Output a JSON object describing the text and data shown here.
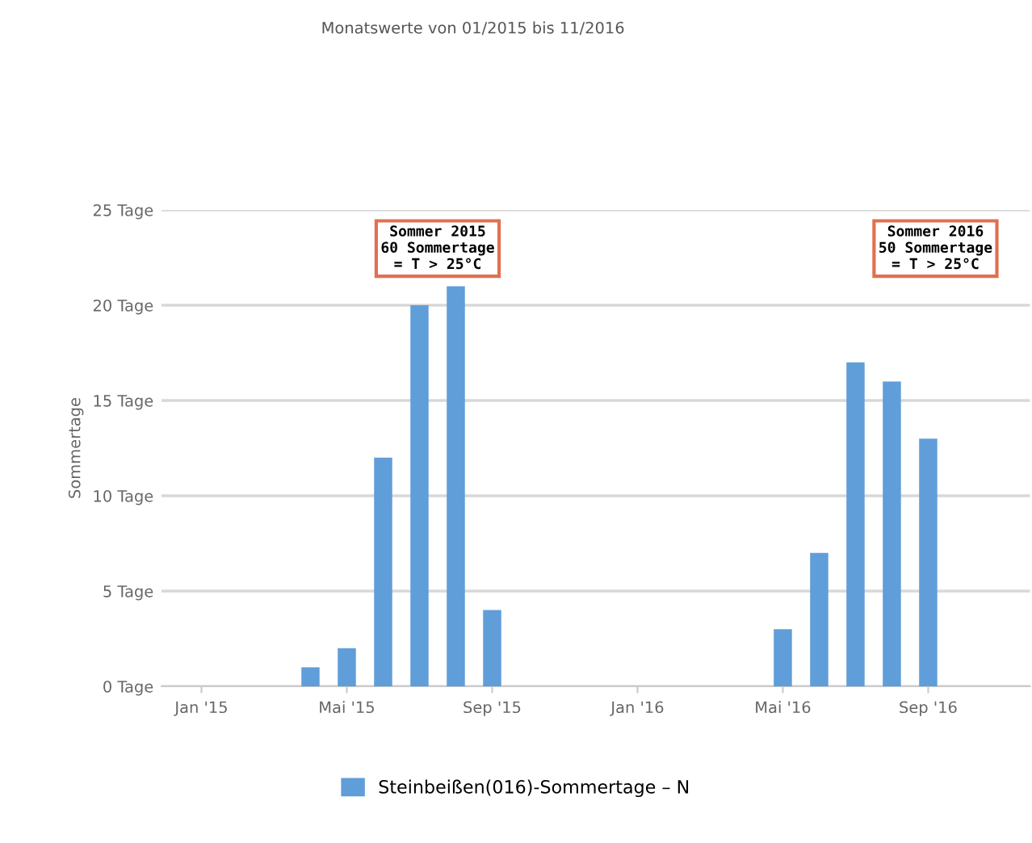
{
  "chart_data": {
    "type": "bar",
    "title": "Monatswerte von 01/2015 bis 11/2016",
    "ylabel": "Sommertage",
    "categories": [
      "Jan '15",
      null,
      null,
      null,
      "Mai '15",
      null,
      null,
      null,
      "Sep '15",
      null,
      null,
      null,
      "Jan '16",
      null,
      null,
      null,
      "Mai '16",
      null,
      null,
      null,
      "Sep '16",
      null,
      null
    ],
    "series": [
      {
        "name": "Steinbeißen(016)-Sommertage – N",
        "color": "#5f9ed8",
        "values": [
          0,
          0,
          0,
          1,
          2,
          12,
          20,
          21,
          4,
          0,
          0,
          0,
          0,
          0,
          0,
          0,
          3,
          7,
          17,
          16,
          13,
          0,
          0
        ]
      }
    ],
    "ylim": [
      0,
      25
    ],
    "yticks": [
      {
        "value": 0,
        "label": "0 Tage"
      },
      {
        "value": 5,
        "label": "5 Tage"
      },
      {
        "value": 10,
        "label": "10 Tage"
      },
      {
        "value": 15,
        "label": "15 Tage"
      },
      {
        "value": 20,
        "label": "20 Tage"
      },
      {
        "value": 25,
        "label": "25 Tage"
      }
    ],
    "annotations": [
      "Sommer 2015\n60 Sommertage\n= T > 25°C",
      "Sommer 2016\n50 Sommertage\n= T > 25°C"
    ],
    "grid": "y",
    "legend": "bottom"
  }
}
